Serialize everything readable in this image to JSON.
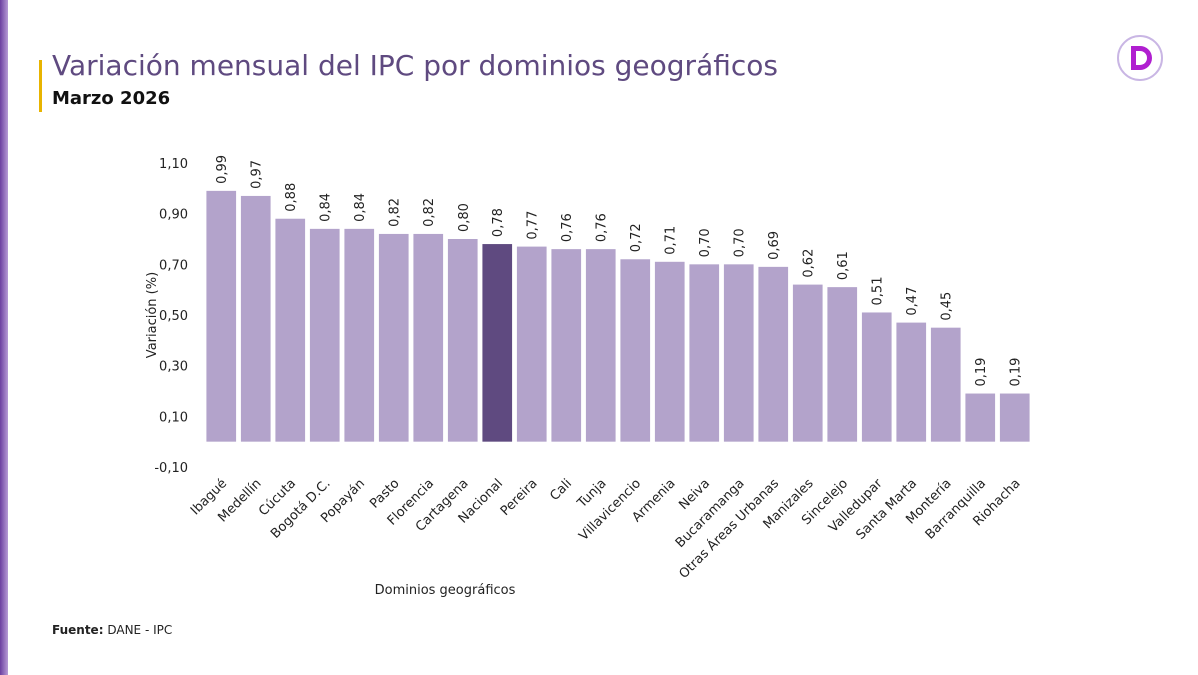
{
  "chart_data": {
    "type": "bar",
    "title": "Variación mensual del IPC por dominios geográficos",
    "subtitle": "Marzo 2026",
    "y_label": "Variación (%)",
    "x_label": "Dominios geográficos",
    "categories": [
      "Ibagué",
      "Medellín",
      "Cúcuta",
      "Bogotá D.C.",
      "Popayán",
      "Pasto",
      "Florencia",
      "Cartagena",
      "Nacional",
      "Pereira",
      "Cali",
      "Tunja",
      "Villavicencio",
      "Armenia",
      "Neiva",
      "Bucaramanga",
      "Otras Áreas Urbanas",
      "Manizales",
      "Sincelejo",
      "Valledupar",
      "Santa Marta",
      "Montería",
      "Barranquilla",
      "Riohacha"
    ],
    "values": [
      0.99,
      0.97,
      0.88,
      0.84,
      0.84,
      0.82,
      0.82,
      0.8,
      0.78,
      0.77,
      0.76,
      0.76,
      0.72,
      0.71,
      0.7,
      0.7,
      0.69,
      0.62,
      0.61,
      0.51,
      0.47,
      0.45,
      0.19,
      0.19
    ],
    "value_labels": [
      "0,99",
      "0,97",
      "0,88",
      "0,84",
      "0,84",
      "0,82",
      "0,82",
      "0,80",
      "0,78",
      "0,77",
      "0,76",
      "0,76",
      "0,72",
      "0,71",
      "0,70",
      "0,70",
      "0,69",
      "0,62",
      "0,61",
      "0,51",
      "0,47",
      "0,45",
      "0,19",
      "0,19"
    ],
    "colors": [
      "#b3a3cb",
      "#b3a3cb",
      "#b3a3cb",
      "#b3a3cb",
      "#b3a3cb",
      "#b3a3cb",
      "#b3a3cb",
      "#b3a3cb",
      "#5f4a80",
      "#b3a3cb",
      "#b3a3cb",
      "#b3a3cb",
      "#b3a3cb",
      "#b3a3cb",
      "#b3a3cb",
      "#b3a3cb",
      "#b3a3cb",
      "#b3a3cb",
      "#b3a3cb",
      "#b3a3cb",
      "#b3a3cb",
      "#b3a3cb",
      "#b3a3cb",
      "#b3a3cb"
    ],
    "ylim": [
      -0.1,
      1.1
    ],
    "yticks": [
      {
        "value": -0.1,
        "label": "-0,10"
      },
      {
        "value": 0.1,
        "label": "0,10"
      },
      {
        "value": 0.3,
        "label": "0,30"
      },
      {
        "value": 0.5,
        "label": "0,50"
      },
      {
        "value": 0.7,
        "label": "0,70"
      },
      {
        "value": 0.9,
        "label": "0,90"
      },
      {
        "value": 1.1,
        "label": "1,10"
      }
    ],
    "grid": false,
    "source": {
      "label": "Fuente:",
      "text": "DANE - IPC"
    }
  }
}
